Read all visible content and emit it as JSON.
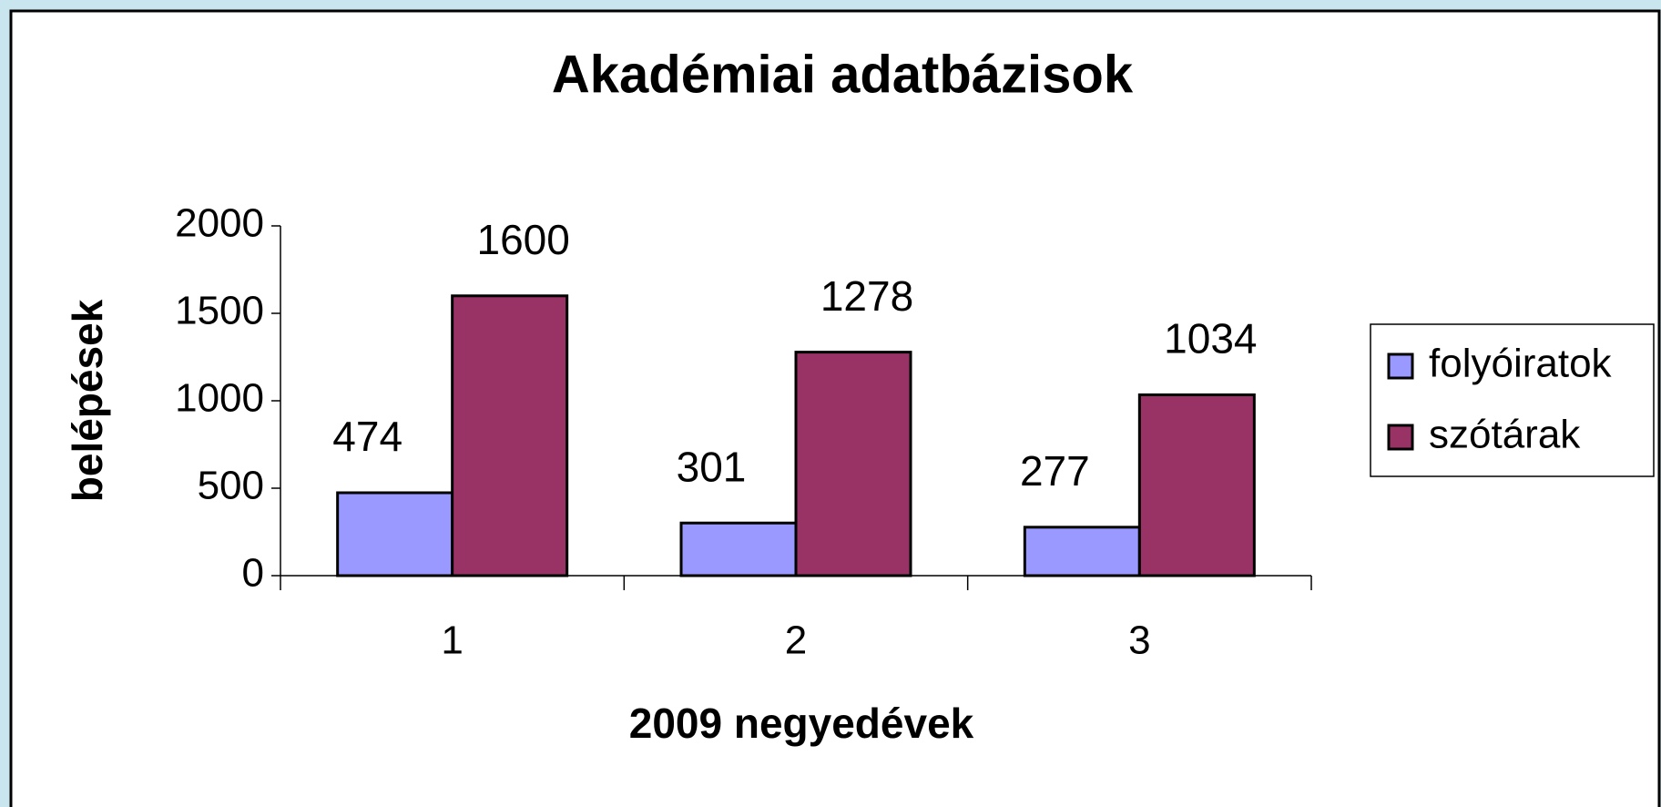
{
  "chart_data": {
    "type": "bar",
    "title": "Akadémiai adatbázisok",
    "x_label": "2009 negyedévek",
    "y_label": "belépések",
    "categories": [
      "1",
      "2",
      "3"
    ],
    "series": [
      {
        "name": "folyóiratok",
        "color": "#9999ff",
        "values": [
          474,
          301,
          277
        ]
      },
      {
        "name": "szótárak",
        "color": "#993366",
        "values": [
          1600,
          1278,
          1034
        ]
      }
    ],
    "ylim": [
      0,
      2000
    ],
    "yticks": [
      0,
      500,
      1000,
      1500,
      2000
    ],
    "legend": "right",
    "grid": false
  }
}
